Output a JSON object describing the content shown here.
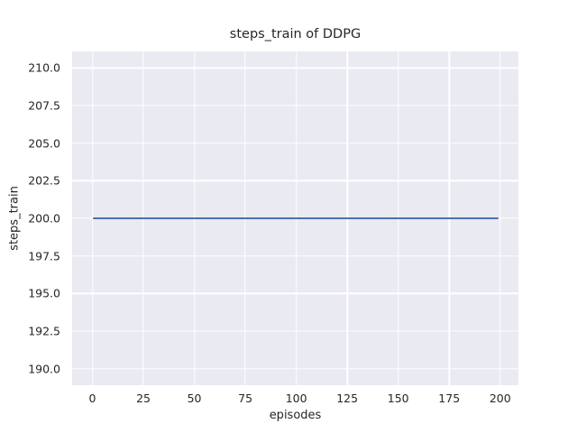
{
  "chart_data": {
    "type": "line",
    "title": "steps_train of DDPG",
    "xlabel": "episodes",
    "ylabel": "steps_train",
    "x_tick_labels": [
      "0",
      "25",
      "50",
      "75",
      "100",
      "125",
      "150",
      "175",
      "200"
    ],
    "y_tick_labels": [
      "190.0",
      "192.5",
      "195.0",
      "197.5",
      "200.0",
      "202.5",
      "205.0",
      "207.5",
      "210.0"
    ],
    "xlim": [
      -9.95,
      208.95
    ],
    "ylim": [
      188.9,
      211.1
    ],
    "grid": true,
    "legend_position": "none",
    "series": [
      {
        "name": "steps_train",
        "x": [
          0,
          199
        ],
        "y": [
          200,
          200
        ],
        "constant_value": 200,
        "color": "#4c72b0"
      }
    ],
    "colors": {
      "figure_background": "#ffffff",
      "axes_background": "#eaeaf2",
      "gridline": "#ffffff",
      "text": "#262626",
      "line": "#4c72b0"
    }
  }
}
